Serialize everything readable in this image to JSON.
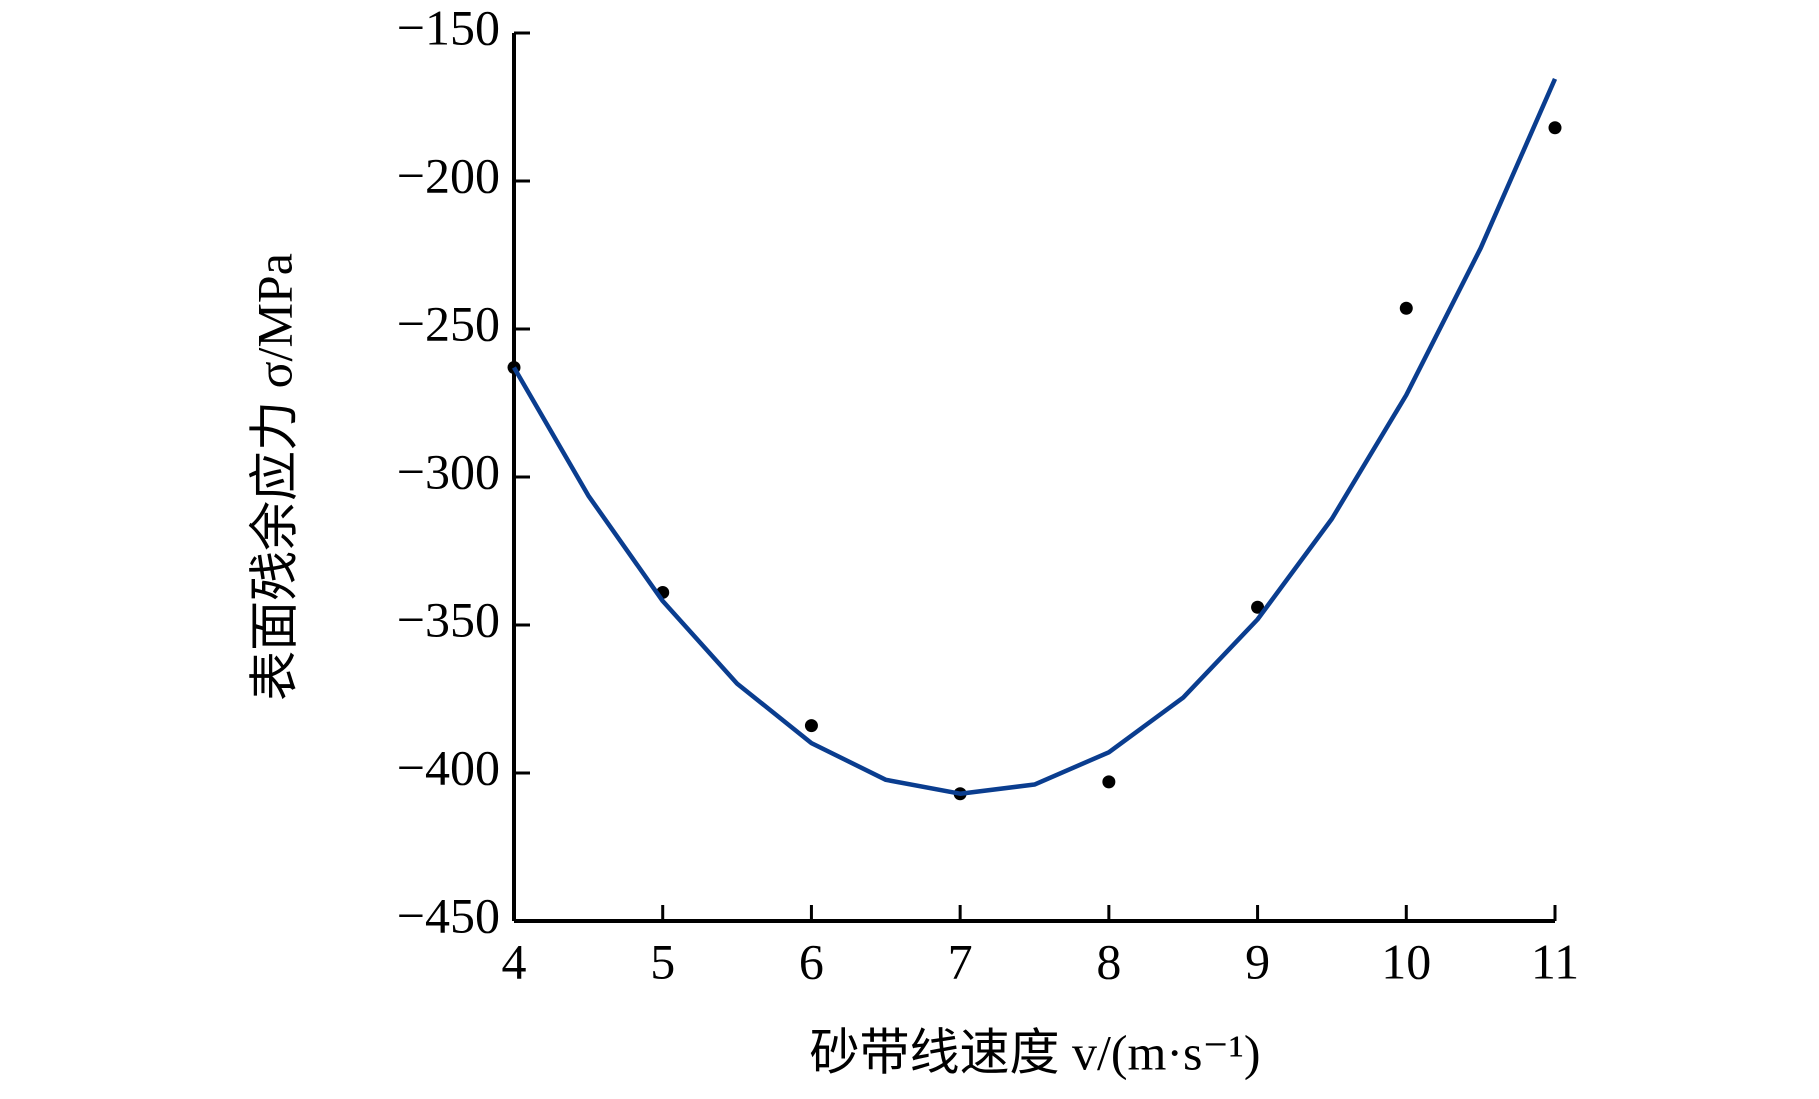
{
  "chart_data": {
    "type": "scatter",
    "x_label": "砂带线速度 v/(m·s⁻¹)",
    "y_label": "表面残余应力 σ/MPa",
    "xlim": [
      4,
      11
    ],
    "ylim": [
      -450,
      -150
    ],
    "xticks": [
      4,
      5,
      6,
      7,
      8,
      9,
      10,
      11
    ],
    "yticks": [
      {
        "value": -150,
        "label": "−150"
      },
      {
        "value": -200,
        "label": "−200"
      },
      {
        "value": -250,
        "label": "−250"
      },
      {
        "value": -300,
        "label": "−300"
      },
      {
        "value": -350,
        "label": "−350"
      },
      {
        "value": -400,
        "label": "−400"
      },
      {
        "value": -450,
        "label": "−450"
      }
    ],
    "series": [
      {
        "kind": "points",
        "color": "#000000",
        "x": [
          4,
          5,
          6,
          7,
          8,
          9,
          10,
          11
        ],
        "values": [
          -263,
          -339,
          -384,
          -407,
          -403,
          -344,
          -243,
          -182
        ]
      },
      {
        "kind": "fit",
        "color": "#0a3d8f",
        "x": [
          4,
          4.5,
          5,
          5.5,
          6,
          6.5,
          7,
          7.5,
          8,
          8.5,
          9,
          9.5,
          10,
          10.5,
          11
        ],
        "values": [
          -263,
          -306.3,
          -341.9,
          -369.8,
          -389.9,
          -402.3,
          -407,
          -403.9,
          -393,
          -374.5,
          -348.1,
          -314.1,
          -272.3,
          -222.7,
          -165.5
        ]
      }
    ]
  }
}
